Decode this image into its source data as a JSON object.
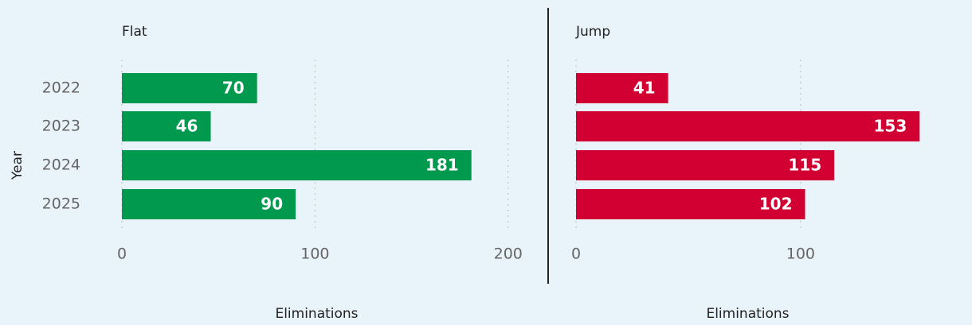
{
  "chart_data": [
    {
      "type": "bar",
      "title": "Flat",
      "ylabel": "Year",
      "xlabel": "Eliminations",
      "categories": [
        "2022",
        "2023",
        "2024",
        "2025"
      ],
      "values": [
        70,
        46,
        181,
        90
      ],
      "color": "#00994d",
      "xlim": [
        0,
        210
      ],
      "xticks": [
        0,
        100,
        200
      ],
      "grid": true
    },
    {
      "type": "bar",
      "title": "Jump",
      "xlabel": "Eliminations",
      "values": [
        41,
        153,
        115,
        102
      ],
      "color": "#d20032",
      "xlim": [
        0,
        160
      ],
      "xticks": [
        0,
        100
      ],
      "grid": true
    }
  ]
}
